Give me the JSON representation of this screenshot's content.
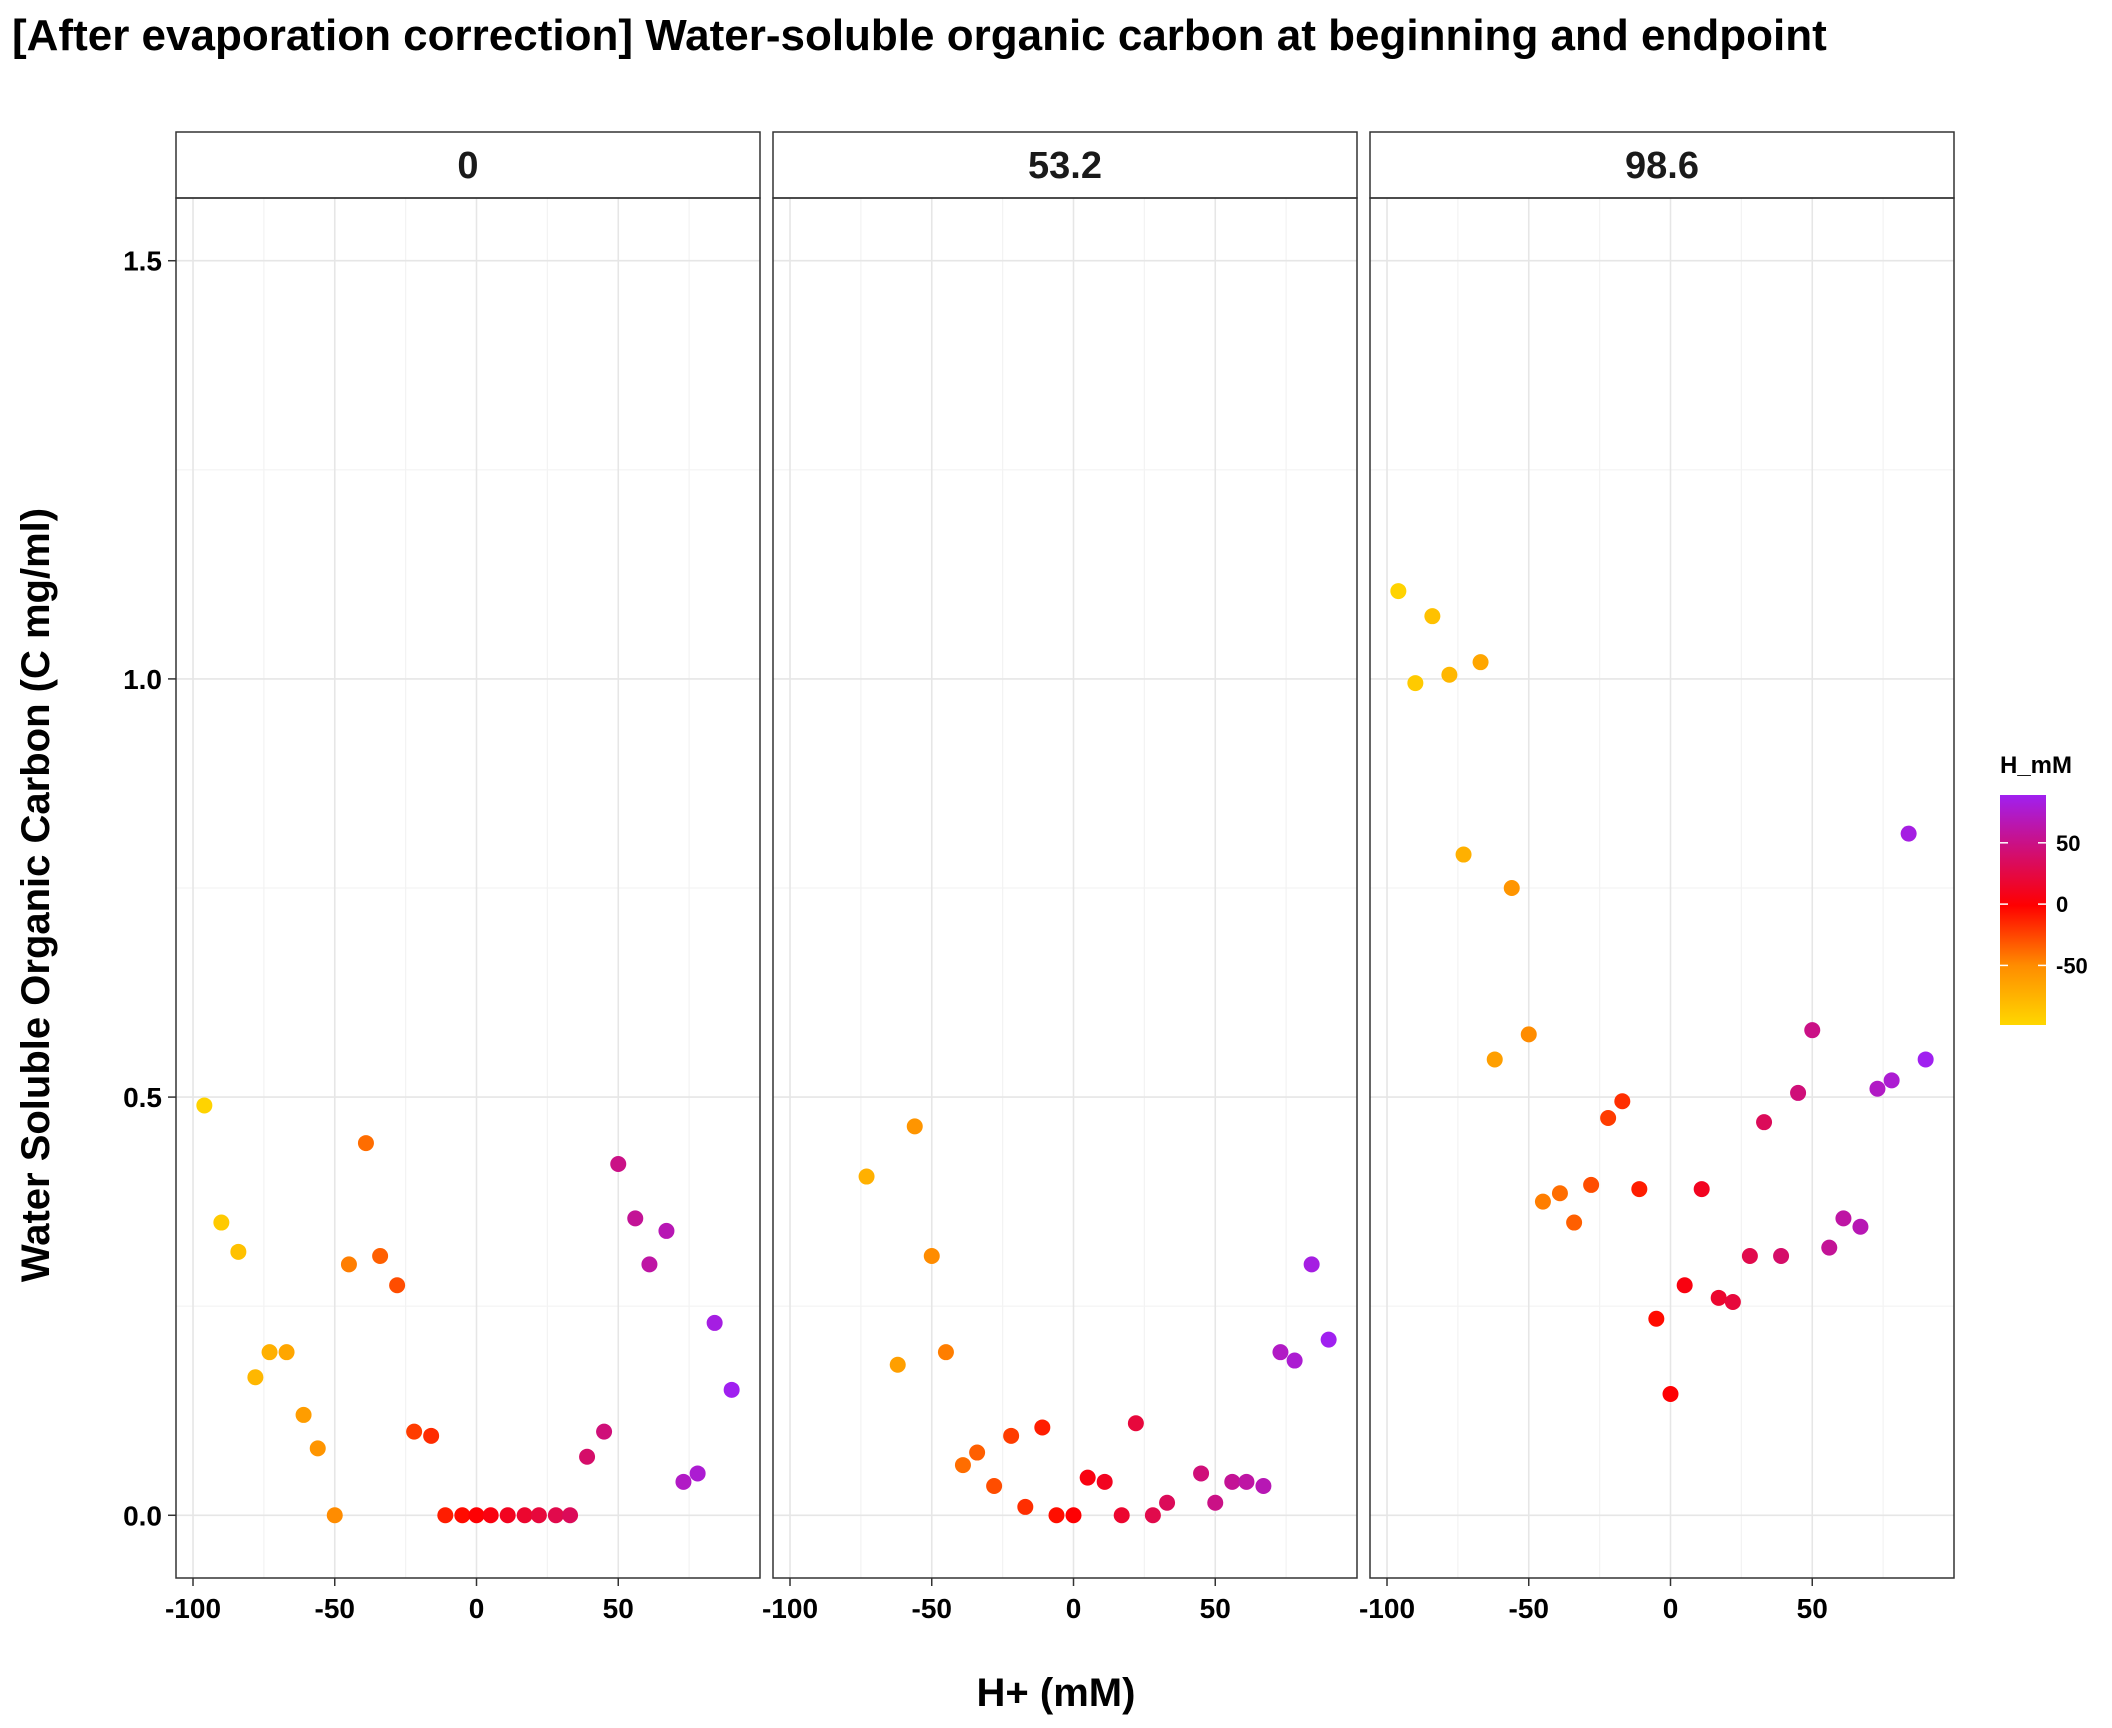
{
  "chart_data": {
    "type": "scatter",
    "title": "[After evaporation correction] Water-soluble organic carbon at beginning and endpoint",
    "xlabel": "H+ (mM)",
    "ylabel": "Water Soluble Organic Carbon (C mg/ml)",
    "xlim": [
      -106,
      100
    ],
    "ylim": [
      -0.075,
      1.575
    ],
    "x_ticks": [
      -100,
      -50,
      0,
      50
    ],
    "x_tick_labels": [
      "-100",
      "-50",
      "0",
      "50"
    ],
    "y_ticks": [
      0.0,
      0.5,
      1.0,
      1.5
    ],
    "y_tick_labels": [
      "0.0",
      "0.5",
      "1.0",
      "1.5"
    ],
    "grid": true,
    "legend": {
      "title": "H_mM",
      "position": "right",
      "type": "colorbar",
      "range": [
        -98.6,
        89
      ],
      "ticks": [
        50,
        0,
        -50
      ],
      "tick_labels": [
        "50",
        "0",
        "-50"
      ],
      "colors": {
        "low": "#FFD700",
        "mid": "#FF0000",
        "high": "#A020F0"
      }
    },
    "facets": [
      {
        "label": "0",
        "points": [
          {
            "x": -96,
            "y": 0.49
          },
          {
            "x": -90,
            "y": 0.35
          },
          {
            "x": -84,
            "y": 0.315
          },
          {
            "x": -78,
            "y": 0.165
          },
          {
            "x": -73,
            "y": 0.195
          },
          {
            "x": -67,
            "y": 0.195
          },
          {
            "x": -61,
            "y": 0.12
          },
          {
            "x": -56,
            "y": 0.08
          },
          {
            "x": -50,
            "y": 0.0
          },
          {
            "x": -45,
            "y": 0.3
          },
          {
            "x": -39,
            "y": 0.445
          },
          {
            "x": -34,
            "y": 0.31
          },
          {
            "x": -28,
            "y": 0.275
          },
          {
            "x": -22,
            "y": 0.1
          },
          {
            "x": -16,
            "y": 0.095
          },
          {
            "x": -11,
            "y": 0.0
          },
          {
            "x": -5,
            "y": 0.0
          },
          {
            "x": 0,
            "y": 0.0
          },
          {
            "x": 5,
            "y": 0.0
          },
          {
            "x": 11,
            "y": 0.0
          },
          {
            "x": 17,
            "y": 0.0
          },
          {
            "x": 22,
            "y": 0.0
          },
          {
            "x": 28,
            "y": 0.0
          },
          {
            "x": 33,
            "y": 0.0
          },
          {
            "x": 39,
            "y": 0.07
          },
          {
            "x": 45,
            "y": 0.1
          },
          {
            "x": 50,
            "y": 0.42
          },
          {
            "x": 56,
            "y": 0.355
          },
          {
            "x": 61,
            "y": 0.3
          },
          {
            "x": 67,
            "y": 0.34
          },
          {
            "x": 73,
            "y": 0.04
          },
          {
            "x": 78,
            "y": 0.05
          },
          {
            "x": 84,
            "y": 0.23
          },
          {
            "x": 90,
            "y": 0.15
          }
        ]
      },
      {
        "label": "53.2",
        "points": [
          {
            "x": -73,
            "y": 0.405
          },
          {
            "x": -62,
            "y": 0.18
          },
          {
            "x": -56,
            "y": 0.465
          },
          {
            "x": -50,
            "y": 0.31
          },
          {
            "x": -45,
            "y": 0.195
          },
          {
            "x": -39,
            "y": 0.06
          },
          {
            "x": -34,
            "y": 0.075
          },
          {
            "x": -28,
            "y": 0.035
          },
          {
            "x": -22,
            "y": 0.095
          },
          {
            "x": -17,
            "y": 0.01
          },
          {
            "x": -11,
            "y": 0.105
          },
          {
            "x": -6,
            "y": 0.0
          },
          {
            "x": 0,
            "y": 0.0
          },
          {
            "x": 5,
            "y": 0.045
          },
          {
            "x": 11,
            "y": 0.04
          },
          {
            "x": 17,
            "y": 0.0
          },
          {
            "x": 22,
            "y": 0.11
          },
          {
            "x": 28,
            "y": 0.0
          },
          {
            "x": 33,
            "y": 0.015
          },
          {
            "x": 45,
            "y": 0.05
          },
          {
            "x": 50,
            "y": 0.015
          },
          {
            "x": 56,
            "y": 0.04
          },
          {
            "x": 61,
            "y": 0.04
          },
          {
            "x": 67,
            "y": 0.035
          },
          {
            "x": 73,
            "y": 0.195
          },
          {
            "x": 78,
            "y": 0.185
          },
          {
            "x": 84,
            "y": 0.3
          },
          {
            "x": 90,
            "y": 0.21
          }
        ]
      },
      {
        "label": "98.6",
        "points": [
          {
            "x": -96,
            "y": 1.105
          },
          {
            "x": -90,
            "y": 0.995
          },
          {
            "x": -84,
            "y": 1.075
          },
          {
            "x": -78,
            "y": 1.005
          },
          {
            "x": -73,
            "y": 0.79
          },
          {
            "x": -67,
            "y": 1.02
          },
          {
            "x": -62,
            "y": 0.545
          },
          {
            "x": -56,
            "y": 0.75
          },
          {
            "x": -50,
            "y": 0.575
          },
          {
            "x": -45,
            "y": 0.375
          },
          {
            "x": -39,
            "y": 0.385
          },
          {
            "x": -34,
            "y": 0.35
          },
          {
            "x": -28,
            "y": 0.395
          },
          {
            "x": -22,
            "y": 0.475
          },
          {
            "x": -17,
            "y": 0.495
          },
          {
            "x": -11,
            "y": 0.39
          },
          {
            "x": -5,
            "y": 0.235
          },
          {
            "x": 0,
            "y": 0.145
          },
          {
            "x": 5,
            "y": 0.275
          },
          {
            "x": 11,
            "y": 0.39
          },
          {
            "x": 17,
            "y": 0.26
          },
          {
            "x": 22,
            "y": 0.255
          },
          {
            "x": 28,
            "y": 0.31
          },
          {
            "x": 33,
            "y": 0.47
          },
          {
            "x": 39,
            "y": 0.31
          },
          {
            "x": 45,
            "y": 0.505
          },
          {
            "x": 50,
            "y": 0.58
          },
          {
            "x": 56,
            "y": 0.32
          },
          {
            "x": 61,
            "y": 0.355
          },
          {
            "x": 67,
            "y": 0.345
          },
          {
            "x": 73,
            "y": 0.51
          },
          {
            "x": 78,
            "y": 0.52
          },
          {
            "x": 84,
            "y": 0.815
          },
          {
            "x": 90,
            "y": 0.545
          }
        ]
      }
    ]
  }
}
